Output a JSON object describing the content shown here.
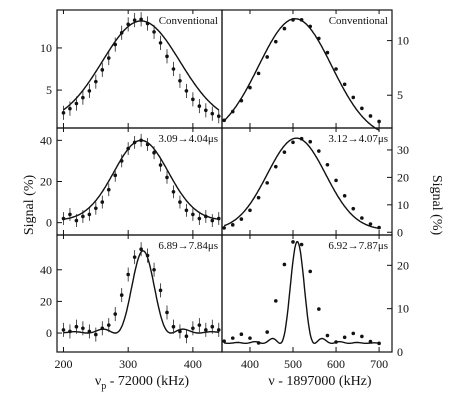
{
  "figure": {
    "left_xlabel": "ν",
    "left_xlabel_sub": "p",
    "left_xlabel_rest": " - 72000 (kHz)",
    "right_xlabel": "ν - 1897000 (kHz)",
    "left_ylabel": "Signal (%)",
    "right_ylabel": "Signal (%)"
  },
  "chart_data": [
    {
      "type": "scatter",
      "annotation": "Conventional",
      "xlim": [
        190,
        445
      ],
      "ylim": [
        0.5,
        14.5
      ],
      "x_ticks": [
        200,
        300,
        400
      ],
      "y_ticks": [
        5,
        10
      ],
      "errors": true,
      "fit": {
        "shape": "gauss",
        "center": 320,
        "width": 60,
        "amplitude": 12.2,
        "baseline": 1.0
      },
      "x": [
        200,
        210,
        220,
        230,
        240,
        250,
        260,
        270,
        280,
        290,
        300,
        310,
        320,
        330,
        340,
        350,
        360,
        370,
        380,
        390,
        400,
        410,
        420,
        430,
        440
      ],
      "y": [
        2.3,
        2.8,
        3.4,
        4.1,
        4.9,
        6.0,
        7.4,
        8.8,
        10.4,
        11.8,
        12.8,
        13.3,
        13.4,
        12.9,
        11.9,
        10.6,
        9.0,
        7.5,
        6.1,
        4.9,
        3.9,
        3.1,
        2.6,
        2.2,
        1.9
      ]
    },
    {
      "type": "scatter",
      "annotation": "Conventional",
      "xlim": [
        335,
        730
      ],
      "ylim": [
        2,
        12.8
      ],
      "x_ticks": [
        400,
        500,
        600,
        700
      ],
      "y_ticks": [
        5,
        10
      ],
      "errors": false,
      "fit": {
        "shape": "gauss",
        "center": 505,
        "width": 85,
        "amplitude": 11.0,
        "baseline": 1.0
      },
      "x": [
        340,
        360,
        380,
        400,
        420,
        440,
        460,
        480,
        500,
        520,
        540,
        560,
        580,
        600,
        620,
        640,
        660,
        680,
        700
      ],
      "y": [
        2.7,
        3.5,
        4.5,
        5.7,
        7.0,
        8.5,
        9.9,
        11.1,
        11.9,
        11.9,
        11.3,
        10.2,
        8.9,
        7.4,
        6.0,
        4.8,
        3.8,
        3.1,
        2.6
      ]
    },
    {
      "type": "scatter",
      "annotation": "3.09→4.04μs",
      "xlim": [
        190,
        445
      ],
      "ylim": [
        -6,
        46
      ],
      "x_ticks": [
        200,
        300,
        400
      ],
      "y_ticks": [
        0,
        20,
        40
      ],
      "errors": true,
      "fit": {
        "shape": "gauss",
        "center": 320,
        "width": 42,
        "amplitude": 39.0,
        "baseline": 1.0
      },
      "x": [
        200,
        210,
        220,
        230,
        240,
        250,
        260,
        270,
        280,
        290,
        300,
        310,
        320,
        330,
        340,
        350,
        360,
        370,
        380,
        390,
        400,
        410,
        420,
        430,
        440
      ],
      "y": [
        2,
        4,
        1,
        3,
        4,
        7,
        10,
        16,
        23,
        30,
        36,
        39,
        40,
        38,
        34,
        28,
        22,
        15,
        10,
        6,
        4,
        2,
        3,
        1,
        2
      ]
    },
    {
      "type": "scatter",
      "annotation": "3.12→4.07μs",
      "xlim": [
        335,
        730
      ],
      "ylim": [
        -1,
        38
      ],
      "x_ticks": [
        400,
        500,
        600,
        700
      ],
      "y_ticks": [
        0,
        10,
        20,
        30
      ],
      "errors": false,
      "fit": {
        "shape": "gauss",
        "center": 508,
        "width": 68,
        "amplitude": 33.5,
        "baseline": 0.8
      },
      "x": [
        340,
        360,
        380,
        400,
        420,
        440,
        460,
        480,
        500,
        520,
        540,
        560,
        580,
        600,
        620,
        640,
        660,
        680,
        700
      ],
      "y": [
        1.6,
        2.7,
        4.8,
        8.0,
        12.6,
        18.0,
        23.9,
        29.2,
        32.8,
        34.1,
        33.0,
        29.6,
        24.6,
        18.9,
        13.3,
        8.6,
        5.2,
        3.0,
        1.7
      ]
    },
    {
      "type": "scatter",
      "annotation": "6.89→7.84μs",
      "xlim": [
        190,
        445
      ],
      "ylim": [
        -12,
        62
      ],
      "x_ticks": [
        200,
        300,
        400
      ],
      "y_ticks": [
        0,
        20,
        40
      ],
      "errors": true,
      "fit": {
        "shape": "sinc2",
        "center": 323,
        "width": 43,
        "amplitude": 52.0,
        "baseline": 0.0
      },
      "x": [
        200,
        210,
        220,
        230,
        240,
        250,
        260,
        270,
        280,
        290,
        300,
        310,
        320,
        330,
        340,
        350,
        360,
        370,
        380,
        390,
        400,
        410,
        420,
        430,
        440
      ],
      "y": [
        2,
        1,
        4,
        3,
        1,
        -1,
        3,
        5,
        12,
        24,
        37,
        48,
        53,
        49,
        40,
        27,
        13,
        4,
        1,
        -2,
        3,
        5,
        2,
        4,
        2
      ]
    },
    {
      "type": "scatter",
      "annotation": "6.92→7.87μs",
      "xlim": [
        335,
        730
      ],
      "ylim": [
        0,
        27
      ],
      "x_ticks": [
        400,
        500,
        600,
        700
      ],
      "y_ticks": [
        0,
        10,
        20
      ],
      "errors": false,
      "fit": {
        "shape": "sinc2",
        "center": 510,
        "width": 40,
        "amplitude": 23.5,
        "baseline": 2.0
      },
      "x": [
        340,
        360,
        380,
        400,
        420,
        440,
        460,
        480,
        500,
        520,
        540,
        560,
        580,
        600,
        620,
        640,
        660,
        680,
        700
      ],
      "y": [
        2.5,
        3.2,
        4.1,
        3.2,
        2.1,
        4.6,
        11.8,
        20.2,
        25.4,
        24.8,
        18.6,
        9.9,
        3.8,
        2.3,
        3.4,
        4.3,
        3.6,
        2.4,
        2.0
      ]
    }
  ]
}
